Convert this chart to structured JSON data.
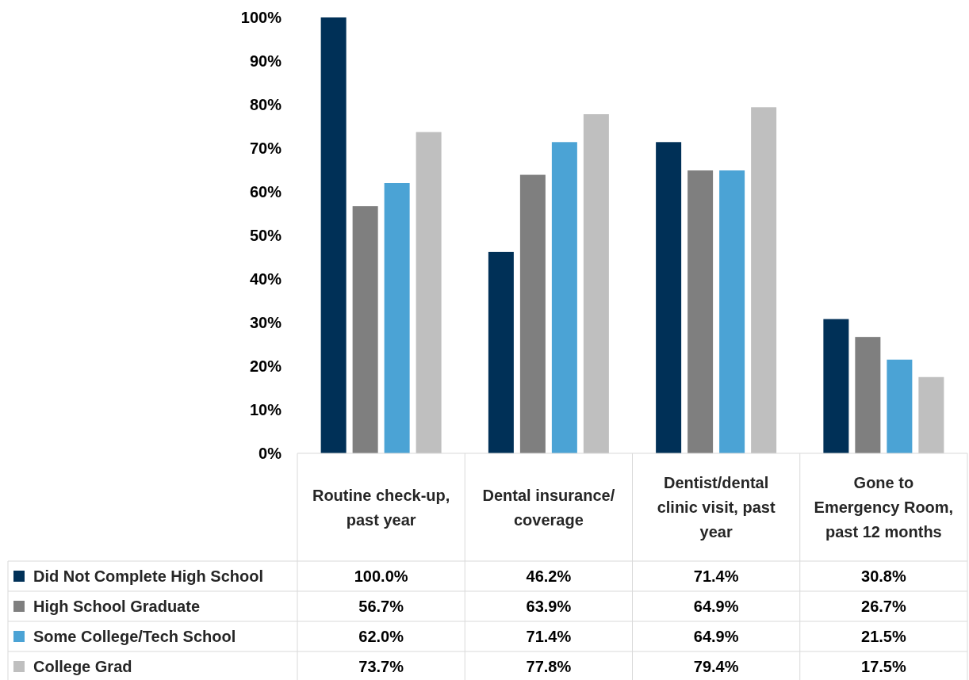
{
  "chart_data": {
    "type": "bar",
    "categories": [
      "Routine check-up, past year",
      "Dental insurance/ coverage",
      "Dentist/dental clinic visit, past year",
      "Gone to Emergency Room, past 12 months"
    ],
    "series": [
      {
        "name": "Did Not Complete High School",
        "color": "#003057",
        "values": [
          100.0,
          46.2,
          71.4,
          30.8
        ],
        "value_labels": [
          "100.0%",
          "46.2%",
          "71.4%",
          "30.8%"
        ]
      },
      {
        "name": "High School Graduate",
        "color": "#7f7f7f",
        "values": [
          56.7,
          63.9,
          64.9,
          26.7
        ],
        "value_labels": [
          "56.7%",
          "63.9%",
          "64.9%",
          "26.7%"
        ]
      },
      {
        "name": "Some College/Tech School",
        "color": "#4ba3d5",
        "values": [
          62.0,
          71.4,
          64.9,
          21.5
        ],
        "value_labels": [
          "62.0%",
          "71.4%",
          "64.9%",
          "21.5%"
        ]
      },
      {
        "name": "College Grad",
        "color": "#bfbfbf",
        "values": [
          73.7,
          77.8,
          79.4,
          17.5
        ],
        "value_labels": [
          "73.7%",
          "77.8%",
          "79.4%",
          "17.5%"
        ]
      }
    ],
    "ylim": [
      0,
      100
    ],
    "yticks": [
      {
        "value": 0,
        "label": "0%"
      },
      {
        "value": 10,
        "label": "10%"
      },
      {
        "value": 20,
        "label": "20%"
      },
      {
        "value": 30,
        "label": "30%"
      },
      {
        "value": 40,
        "label": "40%"
      },
      {
        "value": 50,
        "label": "50%"
      },
      {
        "value": 60,
        "label": "60%"
      },
      {
        "value": 70,
        "label": "70%"
      },
      {
        "value": 80,
        "label": "80%"
      },
      {
        "value": 90,
        "label": "90%"
      },
      {
        "value": 100,
        "label": "100%"
      }
    ],
    "grid": false,
    "legend": "bottom left"
  }
}
